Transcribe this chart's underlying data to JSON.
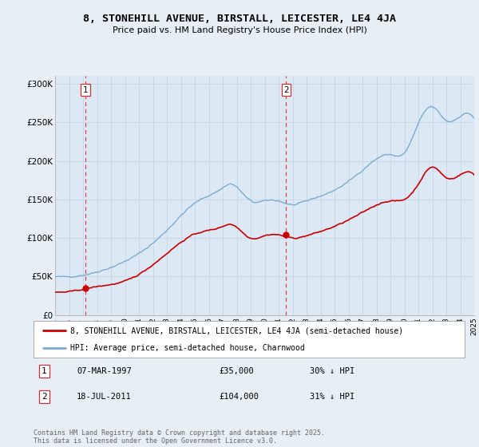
{
  "title": "8, STONEHILL AVENUE, BIRSTALL, LEICESTER, LE4 4JA",
  "subtitle": "Price paid vs. HM Land Registry's House Price Index (HPI)",
  "background_color": "#e8eef5",
  "plot_bg_color": "#dce8f4",
  "ylim": [
    0,
    310000
  ],
  "yticks": [
    0,
    50000,
    100000,
    150000,
    200000,
    250000,
    300000
  ],
  "ytick_labels": [
    "£0",
    "£50K",
    "£100K",
    "£150K",
    "£200K",
    "£250K",
    "£300K"
  ],
  "x_start_year": 1995,
  "x_end_year": 2025,
  "sale1_year": 1997.18,
  "sale1_price": 35000,
  "sale1_label": "1",
  "sale1_date": "07-MAR-1997",
  "sale1_hpi_pct": "30% ↓ HPI",
  "sale2_year": 2011.54,
  "sale2_price": 104000,
  "sale2_label": "2",
  "sale2_date": "18-JUL-2011",
  "sale2_hpi_pct": "31% ↓ HPI",
  "red_line_color": "#cc0000",
  "blue_line_color": "#7aadcf",
  "grid_color": "#c8d8e8",
  "vline_color": "#dd4444",
  "footer_text": "Contains HM Land Registry data © Crown copyright and database right 2025.\nThis data is licensed under the Open Government Licence v3.0."
}
